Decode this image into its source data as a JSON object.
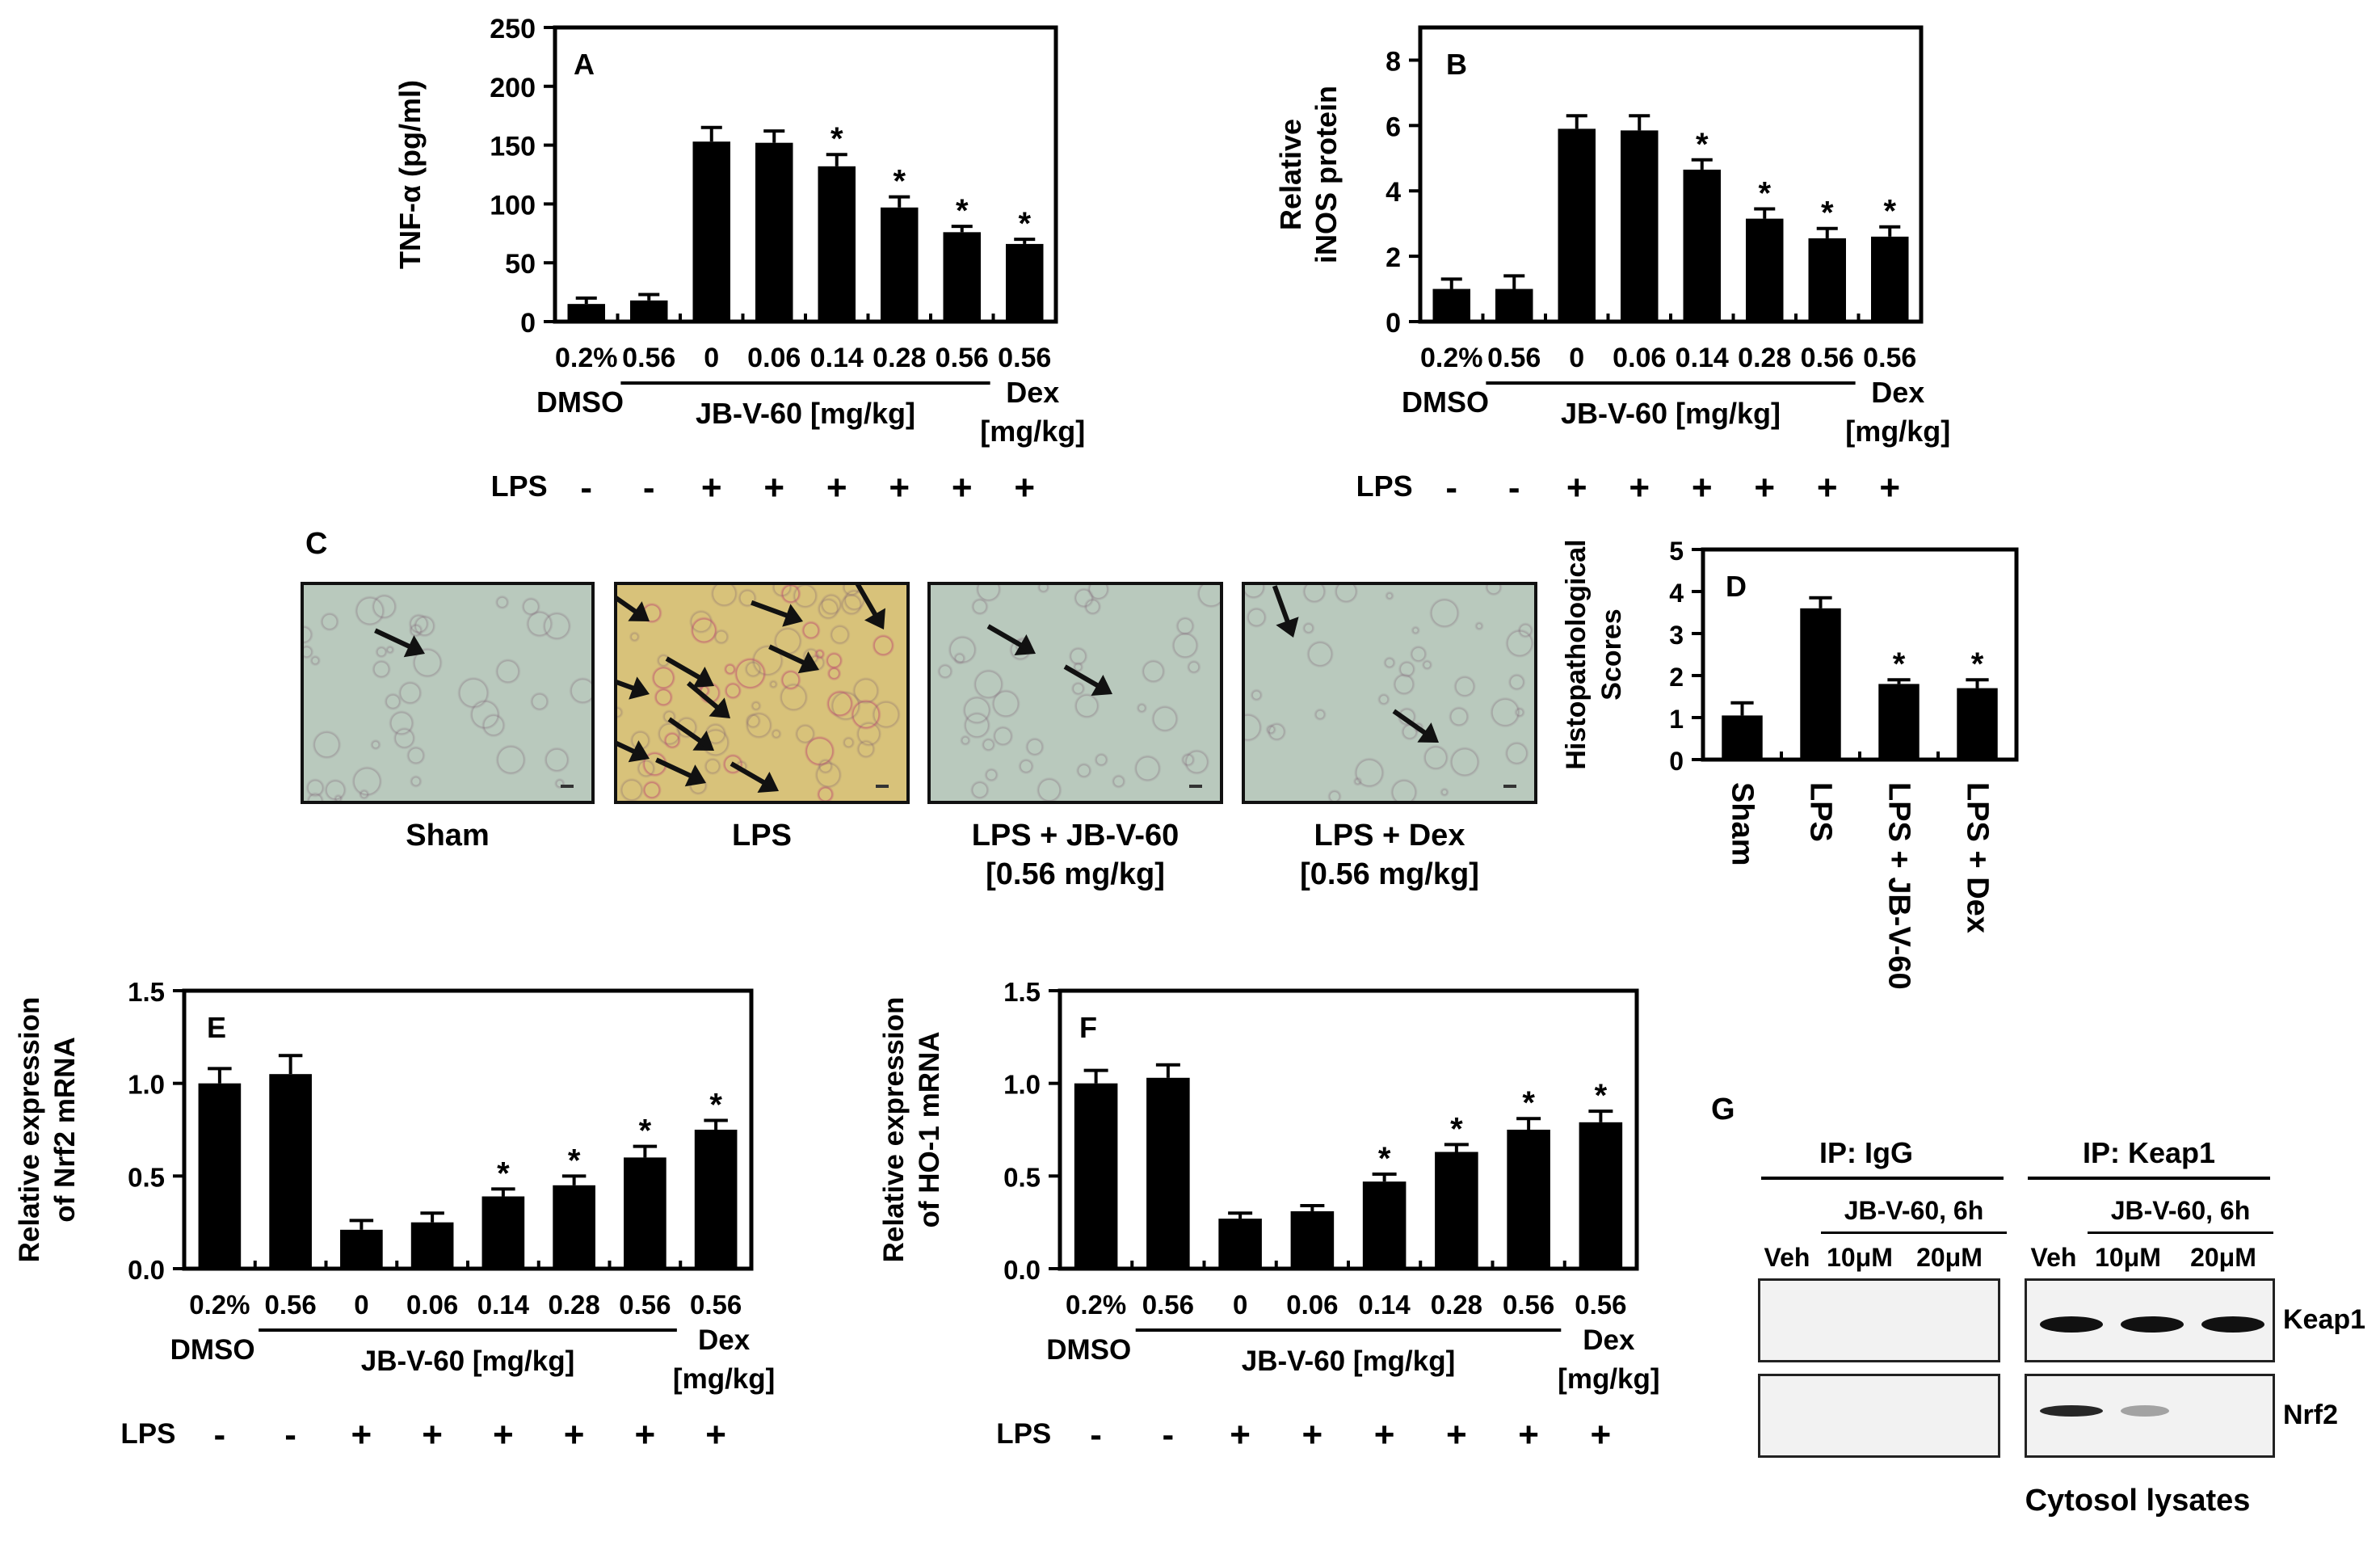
{
  "chart_data": [
    {
      "panel": "A",
      "type": "bar",
      "ylabel": "TNF-α (pg/ml)",
      "ylim": [
        0,
        250
      ],
      "yticks": [
        0,
        50,
        100,
        150,
        200,
        250
      ],
      "categories": [
        "0.2%",
        "0.56",
        "0",
        "0.06",
        "0.14",
        "0.28",
        "0.56",
        "0.56"
      ],
      "values": [
        15,
        18,
        153,
        152,
        132,
        97,
        76,
        66
      ],
      "errors": [
        5,
        5,
        12,
        10,
        10,
        9,
        5,
        4
      ],
      "significant": [
        false,
        false,
        false,
        false,
        true,
        true,
        true,
        true
      ],
      "lps": [
        "-",
        "-",
        "+",
        "+",
        "+",
        "+",
        "+",
        "+"
      ],
      "group_labels": {
        "left": "DMSO",
        "middle": "JB-V-60 [mg/kg]",
        "right_top": "Dex",
        "right_bottom": "[mg/kg]",
        "lps": "LPS"
      }
    },
    {
      "panel": "B",
      "type": "bar",
      "ylabel_lines": [
        "Relative",
        "iNOS protein"
      ],
      "ylim": [
        0,
        9
      ],
      "yticks": [
        0,
        2,
        4,
        6,
        8
      ],
      "categories": [
        "0.2%",
        "0.56",
        "0",
        "0.06",
        "0.14",
        "0.28",
        "0.56",
        "0.56"
      ],
      "values": [
        1.0,
        1.0,
        5.9,
        5.85,
        4.65,
        3.15,
        2.55,
        2.6
      ],
      "errors": [
        0.3,
        0.4,
        0.4,
        0.45,
        0.3,
        0.3,
        0.3,
        0.3
      ],
      "significant": [
        false,
        false,
        false,
        false,
        true,
        true,
        true,
        true
      ],
      "lps": [
        "-",
        "-",
        "+",
        "+",
        "+",
        "+",
        "+",
        "+"
      ],
      "group_labels": {
        "left": "DMSO",
        "middle": "JB-V-60 [mg/kg]",
        "right_top": "Dex",
        "right_bottom": "[mg/kg]",
        "lps": "LPS"
      }
    },
    {
      "panel": "D",
      "type": "bar",
      "ylabel_lines": [
        "Histopathological",
        "Scores"
      ],
      "ylim": [
        0,
        5
      ],
      "yticks": [
        0,
        1,
        2,
        3,
        4,
        5
      ],
      "categories": [
        "Sham",
        "LPS",
        "LPS + JB-V-60",
        "LPS + Dex"
      ],
      "values": [
        1.05,
        3.6,
        1.8,
        1.7
      ],
      "errors": [
        0.3,
        0.25,
        0.1,
        0.2
      ],
      "significant": [
        false,
        false,
        true,
        true
      ]
    },
    {
      "panel": "E",
      "type": "bar",
      "ylabel_lines": [
        "Relative expression",
        "of Nrf2 mRNA"
      ],
      "ylim": [
        0,
        1.5
      ],
      "yticks": [
        "0.0",
        "0.5",
        "1.0",
        "1.5"
      ],
      "categories": [
        "0.2%",
        "0.56",
        "0",
        "0.06",
        "0.14",
        "0.28",
        "0.56",
        "0.56"
      ],
      "values": [
        1.0,
        1.05,
        0.21,
        0.25,
        0.39,
        0.45,
        0.6,
        0.75
      ],
      "errors": [
        0.08,
        0.1,
        0.05,
        0.05,
        0.04,
        0.05,
        0.06,
        0.05
      ],
      "significant": [
        false,
        false,
        false,
        false,
        true,
        true,
        true,
        true
      ],
      "lps": [
        "-",
        "-",
        "+",
        "+",
        "+",
        "+",
        "+",
        "+"
      ],
      "group_labels": {
        "left": "DMSO",
        "middle": "JB-V-60 [mg/kg]",
        "right_top": "Dex",
        "right_bottom": "[mg/kg]",
        "lps": "LPS"
      }
    },
    {
      "panel": "F",
      "type": "bar",
      "ylabel_lines": [
        "Relative expression",
        "of HO-1 mRNA"
      ],
      "ylim": [
        0,
        1.5
      ],
      "yticks": [
        "0.0",
        "0.5",
        "1.0",
        "1.5"
      ],
      "categories": [
        "0.2%",
        "0.56",
        "0",
        "0.06",
        "0.14",
        "0.28",
        "0.56",
        "0.56"
      ],
      "values": [
        1.0,
        1.03,
        0.27,
        0.31,
        0.47,
        0.63,
        0.75,
        0.79
      ],
      "errors": [
        0.07,
        0.07,
        0.03,
        0.03,
        0.04,
        0.04,
        0.06,
        0.06
      ],
      "significant": [
        false,
        false,
        false,
        false,
        true,
        true,
        true,
        true
      ],
      "lps": [
        "-",
        "-",
        "+",
        "+",
        "+",
        "+",
        "+",
        "+"
      ],
      "group_labels": {
        "left": "DMSO",
        "middle": "JB-V-60 [mg/kg]",
        "right_top": "Dex",
        "right_bottom": "[mg/kg]",
        "lps": "LPS"
      }
    }
  ],
  "histology": {
    "panel": "C",
    "images": [
      {
        "caption_line1": "Sham",
        "caption_line2": "",
        "arrows": 1
      },
      {
        "caption_line1": "LPS",
        "caption_line2": "",
        "arrows": 11
      },
      {
        "caption_line1": "LPS + JB-V-60",
        "caption_line2": "[0.56 mg/kg]",
        "arrows": 2
      },
      {
        "caption_line1": "LPS + Dex",
        "caption_line2": "[0.56 mg/kg]",
        "arrows": 2
      }
    ]
  },
  "western": {
    "panel": "G",
    "ip_igg": "IP: IgG",
    "ip_keap1": "IP: Keap1",
    "treatment": "JB-V-60, 6h",
    "lanes": [
      "Veh",
      "10μM",
      "20μM"
    ],
    "rows": [
      "Keap1",
      "Nrf2"
    ],
    "footer": "Cytosol lysates",
    "igg_band_intensity": {
      "Keap1": [
        0,
        0,
        0
      ],
      "Nrf2": [
        0,
        0,
        0
      ]
    },
    "keap1_band_intensity": {
      "Keap1": [
        1.0,
        1.0,
        1.0
      ],
      "Nrf2": [
        0.9,
        0.35,
        0.0
      ]
    }
  },
  "colors": {
    "bar": "#000000",
    "tissue_bg": "#b9c9bd",
    "tissue_inflamed": "#d8c27a",
    "blot_bg": "#f2f2f2",
    "band": "#111111"
  }
}
